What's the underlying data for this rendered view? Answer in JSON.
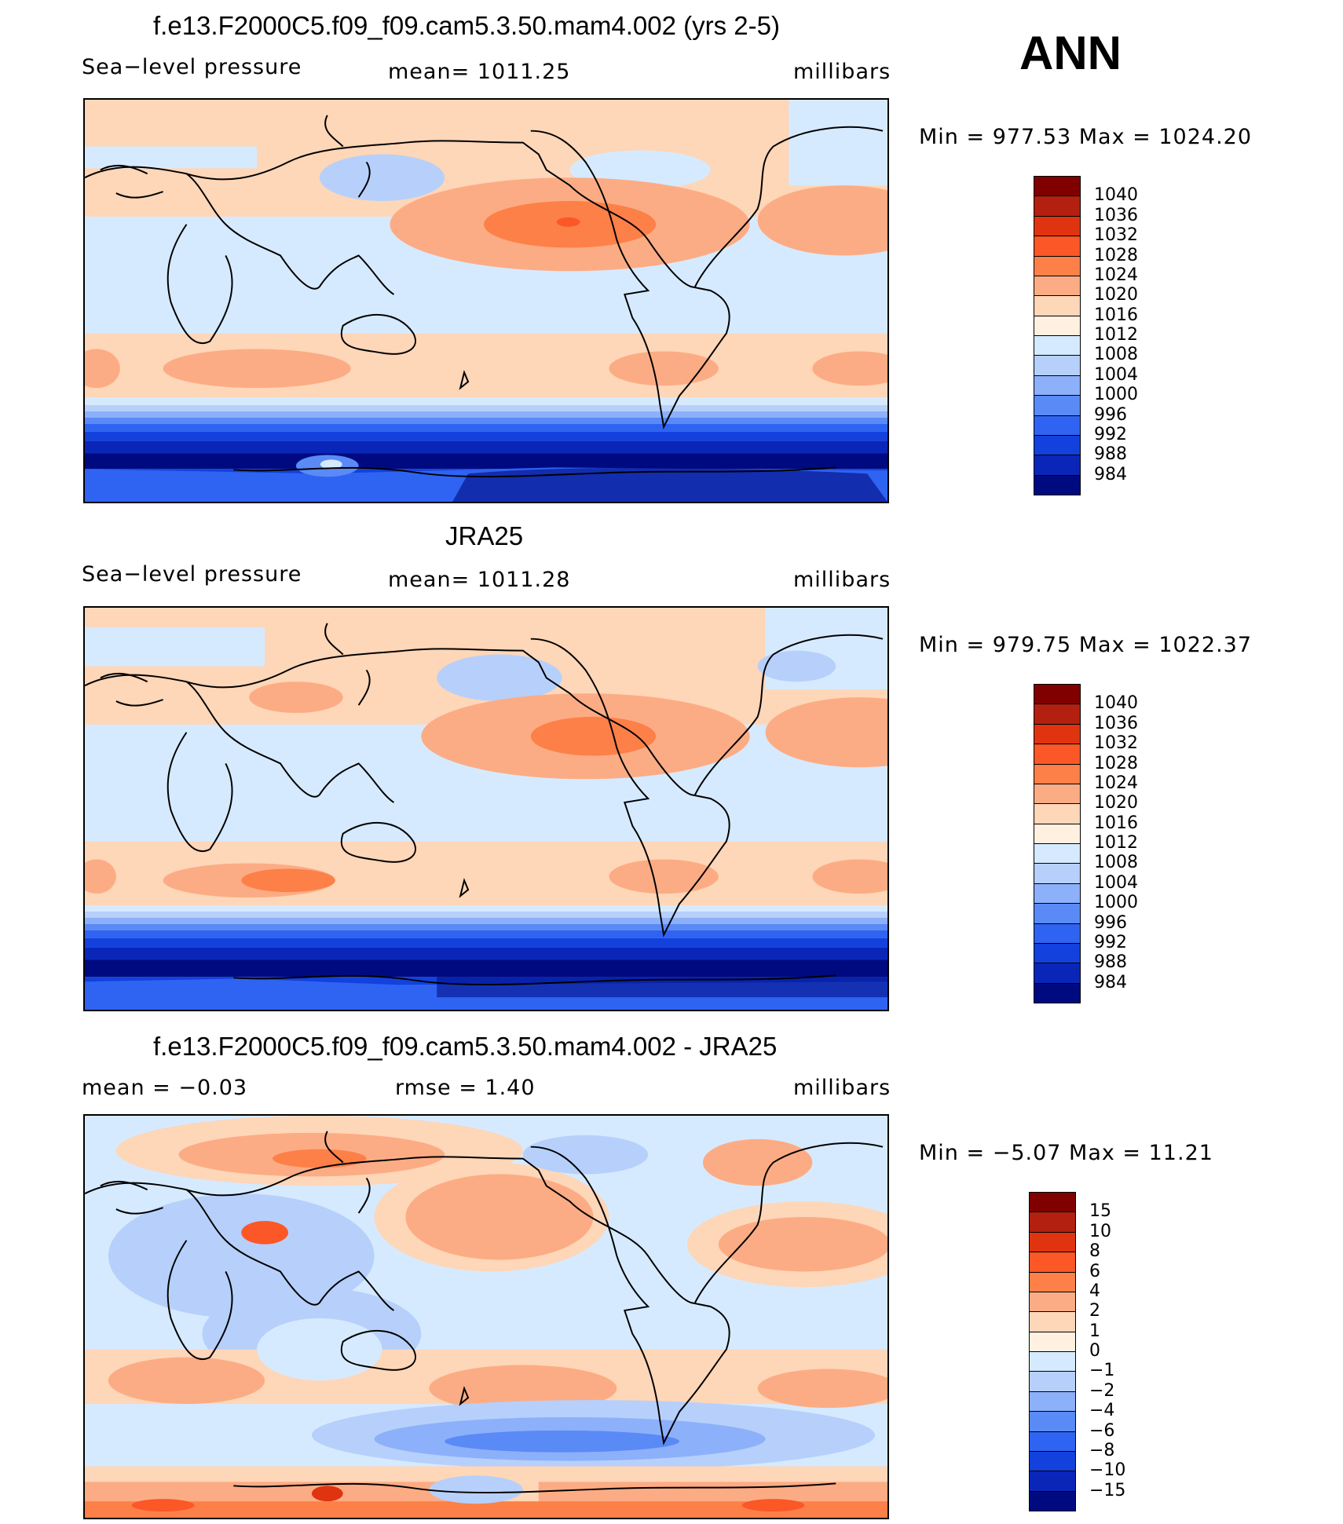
{
  "figure_label": "ANN",
  "panels": [
    {
      "title": "f.e13.F2000C5.f09_f09.cam5.3.50.mam4.002 (yrs 2-5)",
      "left_label": "Sea−level pressure",
      "center_label": "mean=  1011.25",
      "units": "millibars",
      "minmax": "Min  =  977.53  Max  =  1024.20",
      "colorbar": {
        "colors": [
          "#800000",
          "#b3200f",
          "#e03410",
          "#fc5727",
          "#fd8049",
          "#fcac84",
          "#fed6b8",
          "#fff0e0",
          "#d6eaff",
          "#b6d0fb",
          "#8db0fa",
          "#5a8af6",
          "#2f63f2",
          "#1241dd",
          "#0a26b8",
          "#000a80"
        ],
        "ticks": [
          "1040",
          "1036",
          "1032",
          "1028",
          "1024",
          "1020",
          "1016",
          "1012",
          "1008",
          "1004",
          "1000",
          "996",
          "992",
          "988",
          "984"
        ]
      }
    },
    {
      "title": "JRA25",
      "left_label": "Sea−level pressure",
      "center_label": "mean=  1011.28",
      "units": "millibars",
      "minmax": "Min  =  979.75  Max  =  1022.37",
      "colorbar": {
        "colors": [
          "#800000",
          "#b3200f",
          "#e03410",
          "#fc5727",
          "#fd8049",
          "#fcac84",
          "#fed6b8",
          "#fff0e0",
          "#d6eaff",
          "#b6d0fb",
          "#8db0fa",
          "#5a8af6",
          "#2f63f2",
          "#1241dd",
          "#0a26b8",
          "#000a80"
        ],
        "ticks": [
          "1040",
          "1036",
          "1032",
          "1028",
          "1024",
          "1020",
          "1016",
          "1012",
          "1008",
          "1004",
          "1000",
          "996",
          "992",
          "988",
          "984"
        ]
      }
    },
    {
      "title": "f.e13.F2000C5.f09_f09.cam5.3.50.mam4.002 - JRA25",
      "left_label": "mean  =    −0.03",
      "center_label": "rmse  =     1.40",
      "units": "millibars",
      "minmax": "Min  =   −5.07  Max  =    11.21",
      "colorbar": {
        "colors": [
          "#800000",
          "#b3200f",
          "#e03410",
          "#fc5727",
          "#fd8049",
          "#fcac84",
          "#fed6b8",
          "#fff0e0",
          "#d6eaff",
          "#b6d0fb",
          "#8db0fa",
          "#5a8af6",
          "#2f63f2",
          "#1241dd",
          "#0a26b8",
          "#000a80"
        ],
        "ticks": [
          "15",
          "10",
          "8",
          "6",
          "4",
          "2",
          "1",
          "0",
          "−1",
          "−2",
          "−4",
          "−6",
          "−8",
          "−10",
          "−15"
        ]
      }
    }
  ]
}
